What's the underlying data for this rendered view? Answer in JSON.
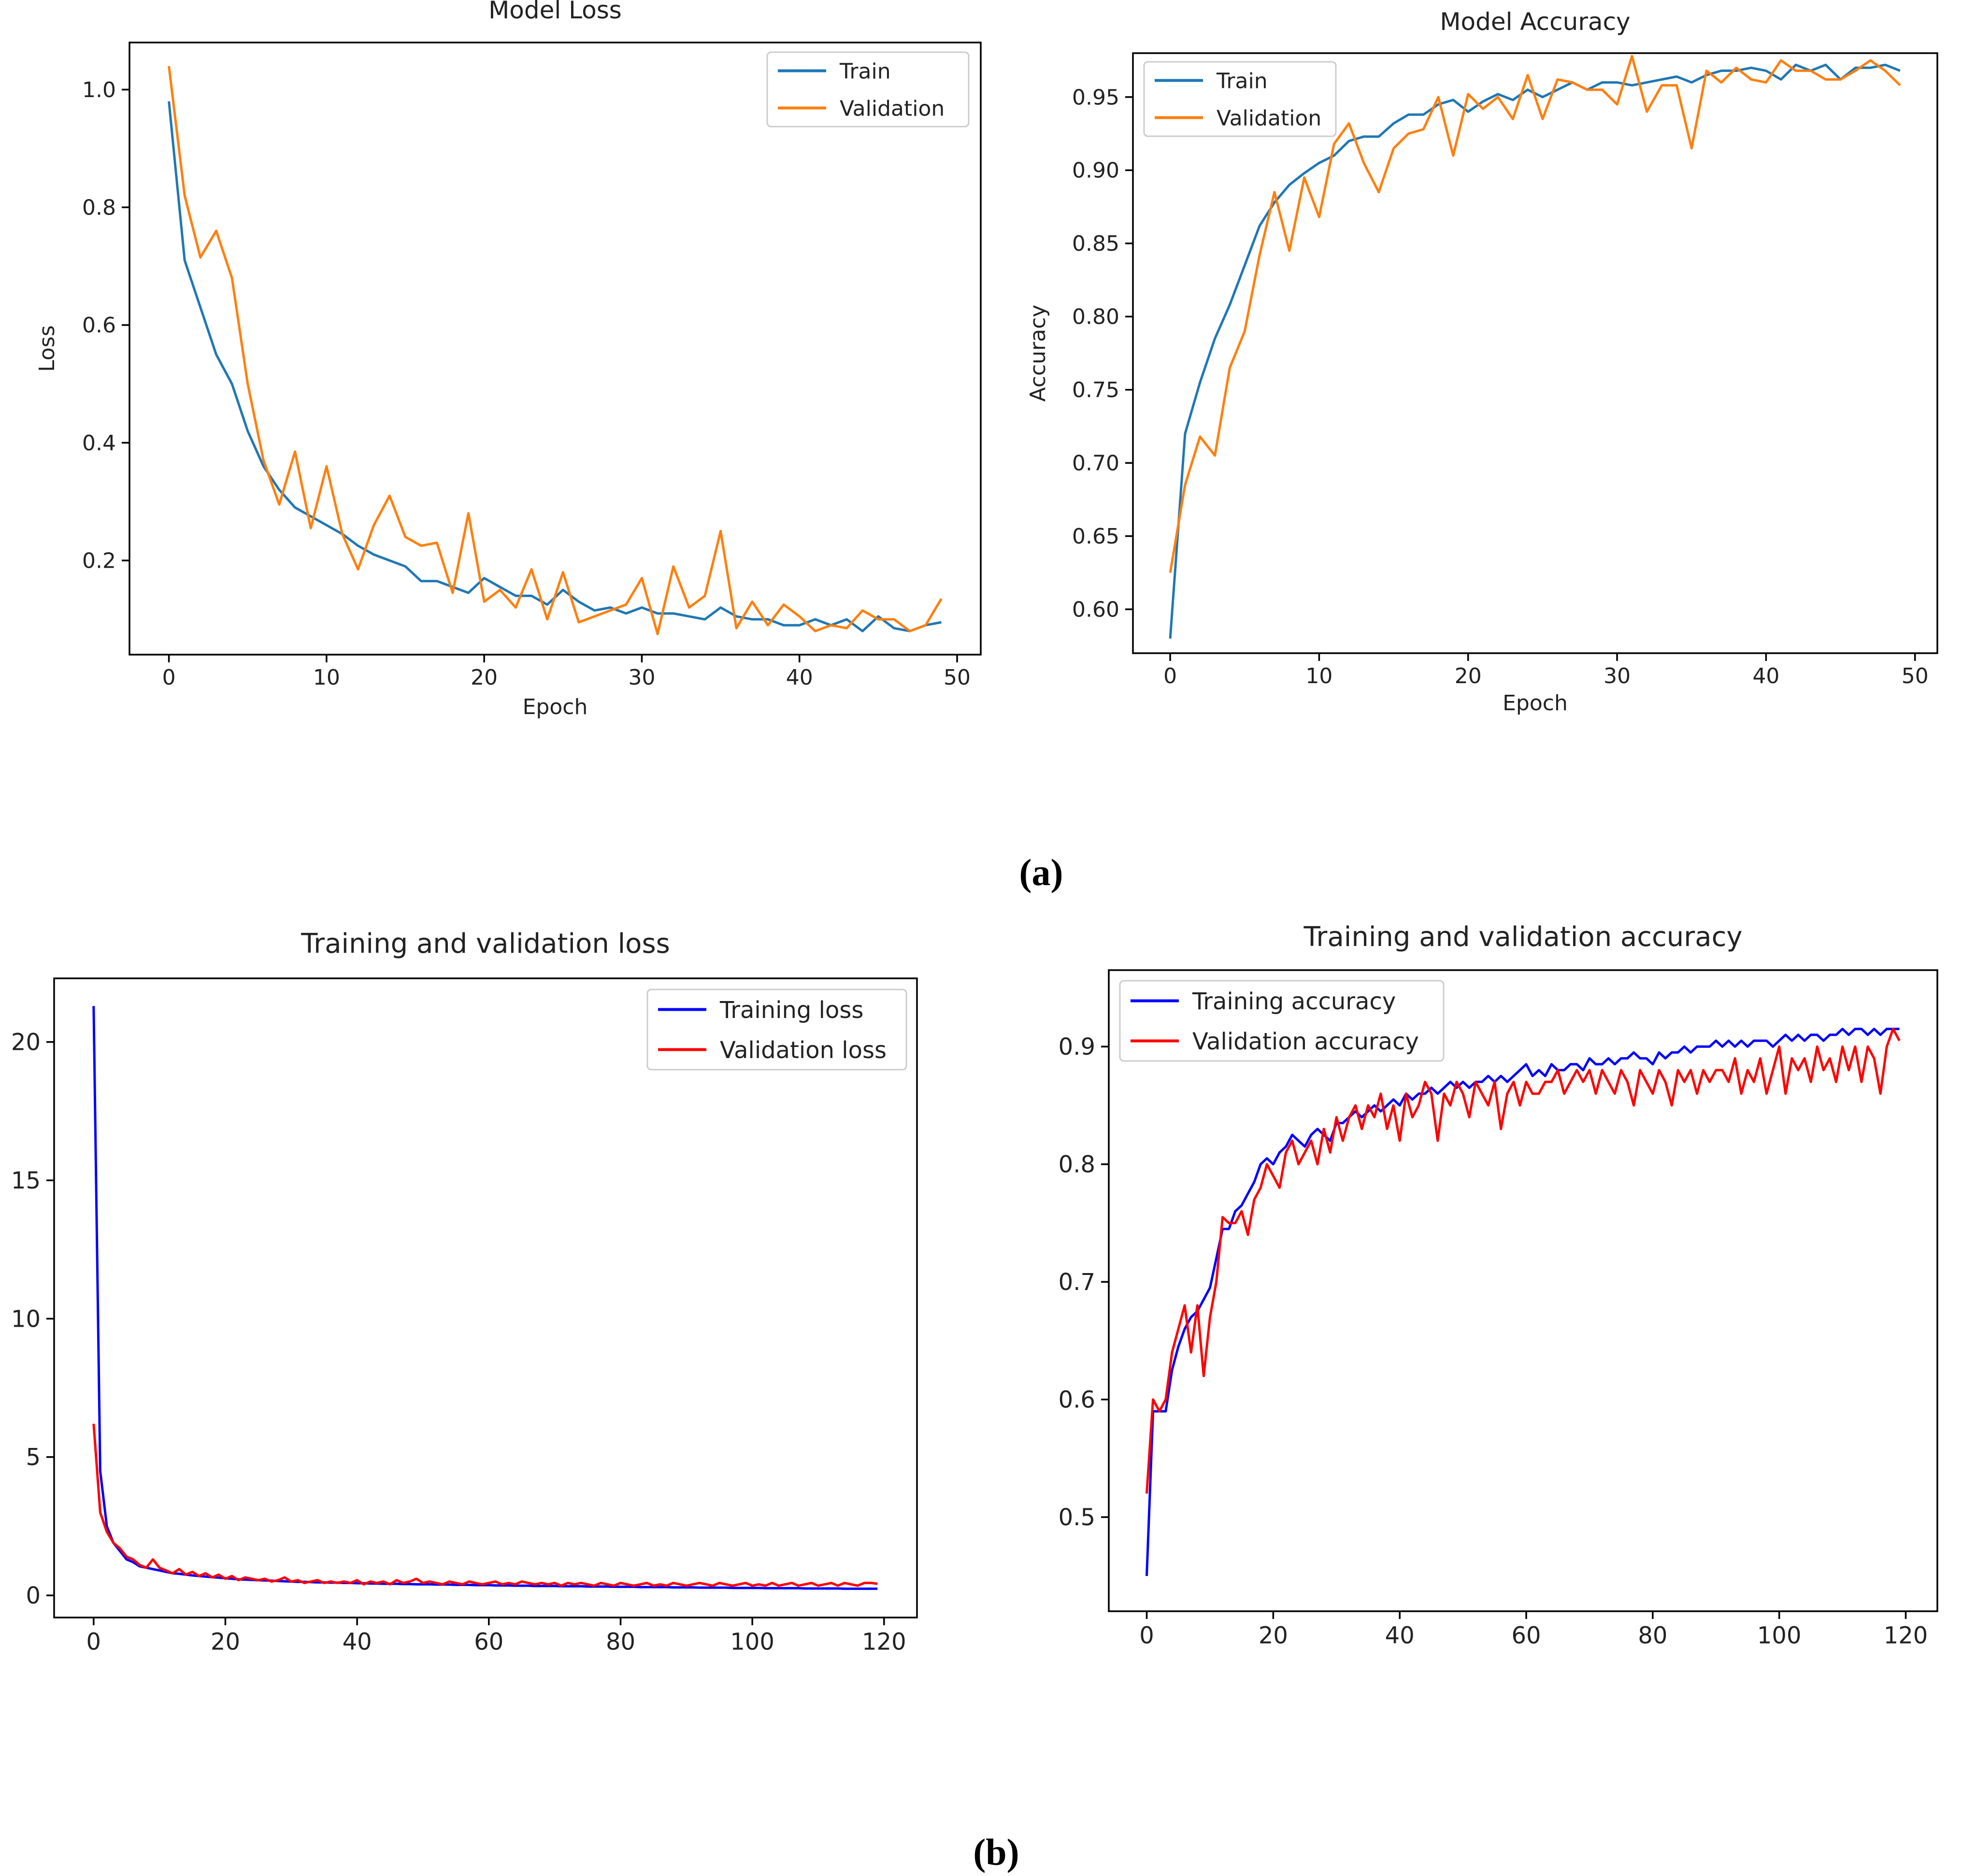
{
  "figure": {
    "caption_a": "(a)",
    "caption_b": "(b)"
  },
  "chart_data": [
    {
      "id": "a-loss",
      "type": "line",
      "title": "Model Loss",
      "xlabel": "Epoch",
      "ylabel": "Loss",
      "xlim": [
        -2.5,
        51.5
      ],
      "ylim": [
        0.04,
        1.08
      ],
      "xticks": [
        0,
        10,
        20,
        30,
        40,
        50
      ],
      "xtick_labels": [
        "0",
        "10",
        "20",
        "30",
        "40",
        "50"
      ],
      "yticks": [
        0.2,
        0.4,
        0.6,
        0.8,
        1.0
      ],
      "ytick_labels": [
        "0.2",
        "0.4",
        "0.6",
        "0.8",
        "1.0"
      ],
      "legend_position": "top-right",
      "series": [
        {
          "name": "Train",
          "color": "#1f77b4",
          "values": [
            0.98,
            0.71,
            0.63,
            0.55,
            0.5,
            0.42,
            0.36,
            0.32,
            0.29,
            0.275,
            0.26,
            0.245,
            0.225,
            0.21,
            0.2,
            0.19,
            0.165,
            0.165,
            0.155,
            0.145,
            0.17,
            0.155,
            0.14,
            0.14,
            0.125,
            0.15,
            0.13,
            0.115,
            0.12,
            0.11,
            0.12,
            0.11,
            0.11,
            0.105,
            0.1,
            0.12,
            0.105,
            0.1,
            0.1,
            0.09,
            0.09,
            0.1,
            0.09,
            0.1,
            0.08,
            0.105,
            0.085,
            0.08,
            0.09,
            0.095
          ]
        },
        {
          "name": "Validation",
          "color": "#ff7f0e",
          "values": [
            1.04,
            0.82,
            0.715,
            0.76,
            0.68,
            0.5,
            0.37,
            0.295,
            0.385,
            0.255,
            0.36,
            0.245,
            0.185,
            0.26,
            0.31,
            0.24,
            0.225,
            0.23,
            0.145,
            0.28,
            0.13,
            0.15,
            0.12,
            0.185,
            0.1,
            0.18,
            0.095,
            0.105,
            0.115,
            0.125,
            0.17,
            0.075,
            0.19,
            0.12,
            0.14,
            0.25,
            0.085,
            0.13,
            0.09,
            0.125,
            0.105,
            0.08,
            0.09,
            0.085,
            0.115,
            0.1,
            0.1,
            0.08,
            0.09,
            0.135
          ]
        }
      ]
    },
    {
      "id": "a-acc",
      "type": "line",
      "title": "Model Accuracy",
      "xlabel": "Epoch",
      "ylabel": "Accuracy",
      "xlim": [
        -2.5,
        51.5
      ],
      "ylim": [
        0.57,
        0.98
      ],
      "xticks": [
        0,
        10,
        20,
        30,
        40,
        50
      ],
      "xtick_labels": [
        "0",
        "10",
        "20",
        "30",
        "40",
        "50"
      ],
      "yticks": [
        0.6,
        0.65,
        0.7,
        0.75,
        0.8,
        0.85,
        0.9,
        0.95
      ],
      "ytick_labels": [
        "0.60",
        "0.65",
        "0.70",
        "0.75",
        "0.80",
        "0.85",
        "0.90",
        "0.95"
      ],
      "legend_position": "top-left",
      "series": [
        {
          "name": "Train",
          "color": "#1f77b4",
          "values": [
            0.58,
            0.72,
            0.755,
            0.785,
            0.808,
            0.835,
            0.862,
            0.878,
            0.89,
            0.898,
            0.905,
            0.91,
            0.92,
            0.923,
            0.923,
            0.932,
            0.938,
            0.938,
            0.945,
            0.948,
            0.94,
            0.947,
            0.952,
            0.948,
            0.955,
            0.95,
            0.955,
            0.96,
            0.955,
            0.96,
            0.96,
            0.958,
            0.96,
            0.962,
            0.964,
            0.96,
            0.965,
            0.968,
            0.968,
            0.97,
            0.968,
            0.962,
            0.972,
            0.968,
            0.972,
            0.962,
            0.97,
            0.97,
            0.972,
            0.968
          ]
        },
        {
          "name": "Validation",
          "color": "#ff7f0e",
          "values": [
            0.625,
            0.685,
            0.718,
            0.705,
            0.765,
            0.79,
            0.842,
            0.885,
            0.845,
            0.895,
            0.868,
            0.918,
            0.932,
            0.905,
            0.885,
            0.915,
            0.925,
            0.928,
            0.95,
            0.91,
            0.952,
            0.942,
            0.95,
            0.935,
            0.965,
            0.935,
            0.962,
            0.96,
            0.955,
            0.955,
            0.945,
            0.978,
            0.94,
            0.958,
            0.958,
            0.915,
            0.968,
            0.96,
            0.97,
            0.962,
            0.96,
            0.975,
            0.968,
            0.968,
            0.962,
            0.962,
            0.968,
            0.975,
            0.968,
            0.958
          ]
        }
      ]
    },
    {
      "id": "b-loss",
      "type": "line",
      "title": "Training and validation loss",
      "xlabel": "",
      "ylabel": "",
      "xlim": [
        -6,
        125
      ],
      "ylim": [
        -0.8,
        22.3
      ],
      "xticks": [
        0,
        20,
        40,
        60,
        80,
        100,
        120
      ],
      "xtick_labels": [
        "0",
        "20",
        "40",
        "60",
        "80",
        "100",
        "120"
      ],
      "yticks": [
        0,
        5,
        10,
        15,
        20
      ],
      "ytick_labels": [
        "0",
        "5",
        "10",
        "15",
        "20"
      ],
      "legend_position": "top-right",
      "series": [
        {
          "name": "Training loss",
          "color": "#0000ff",
          "values": [
            21.3,
            4.5,
            2.5,
            1.9,
            1.6,
            1.3,
            1.2,
            1.05,
            1.0,
            0.95,
            0.9,
            0.85,
            0.8,
            0.78,
            0.75,
            0.72,
            0.7,
            0.68,
            0.66,
            0.64,
            0.62,
            0.6,
            0.58,
            0.57,
            0.56,
            0.55,
            0.54,
            0.53,
            0.52,
            0.51,
            0.5,
            0.49,
            0.49,
            0.48,
            0.47,
            0.47,
            0.46,
            0.46,
            0.45,
            0.45,
            0.44,
            0.44,
            0.43,
            0.43,
            0.42,
            0.42,
            0.42,
            0.41,
            0.41,
            0.4,
            0.4,
            0.4,
            0.39,
            0.39,
            0.39,
            0.38,
            0.38,
            0.38,
            0.37,
            0.37,
            0.37,
            0.36,
            0.36,
            0.36,
            0.35,
            0.35,
            0.35,
            0.34,
            0.34,
            0.34,
            0.34,
            0.33,
            0.33,
            0.33,
            0.33,
            0.32,
            0.32,
            0.32,
            0.32,
            0.31,
            0.31,
            0.31,
            0.31,
            0.3,
            0.3,
            0.3,
            0.3,
            0.3,
            0.29,
            0.29,
            0.29,
            0.29,
            0.28,
            0.28,
            0.28,
            0.28,
            0.28,
            0.27,
            0.27,
            0.27,
            0.27,
            0.27,
            0.26,
            0.26,
            0.26,
            0.26,
            0.26,
            0.26,
            0.25,
            0.25,
            0.25,
            0.25,
            0.25,
            0.25,
            0.24,
            0.24,
            0.24,
            0.24,
            0.24,
            0.24
          ]
        },
        {
          "name": "Validation loss",
          "color": "#ff0000",
          "values": [
            6.2,
            3.0,
            2.3,
            1.9,
            1.7,
            1.4,
            1.3,
            1.1,
            1.0,
            1.3,
            1.0,
            0.9,
            0.8,
            0.95,
            0.75,
            0.85,
            0.7,
            0.8,
            0.65,
            0.75,
            0.6,
            0.7,
            0.55,
            0.65,
            0.6,
            0.55,
            0.6,
            0.5,
            0.55,
            0.65,
            0.5,
            0.55,
            0.45,
            0.5,
            0.55,
            0.45,
            0.5,
            0.45,
            0.5,
            0.45,
            0.55,
            0.4,
            0.5,
            0.45,
            0.5,
            0.4,
            0.55,
            0.45,
            0.5,
            0.6,
            0.45,
            0.5,
            0.45,
            0.4,
            0.5,
            0.45,
            0.4,
            0.5,
            0.45,
            0.4,
            0.45,
            0.5,
            0.4,
            0.45,
            0.4,
            0.5,
            0.45,
            0.4,
            0.45,
            0.4,
            0.45,
            0.35,
            0.45,
            0.4,
            0.45,
            0.4,
            0.35,
            0.45,
            0.4,
            0.35,
            0.45,
            0.4,
            0.35,
            0.4,
            0.45,
            0.35,
            0.4,
            0.35,
            0.45,
            0.4,
            0.35,
            0.4,
            0.45,
            0.4,
            0.35,
            0.45,
            0.4,
            0.35,
            0.4,
            0.45,
            0.35,
            0.4,
            0.35,
            0.45,
            0.35,
            0.4,
            0.45,
            0.35,
            0.4,
            0.45,
            0.35,
            0.4,
            0.45,
            0.35,
            0.45,
            0.4,
            0.35,
            0.45,
            0.45,
            0.42
          ]
        }
      ]
    },
    {
      "id": "b-acc",
      "type": "line",
      "title": "Training and validation accuracy",
      "xlabel": "",
      "ylabel": "",
      "xlim": [
        -6,
        125
      ],
      "ylim": [
        0.42,
        0.965
      ],
      "xticks": [
        0,
        20,
        40,
        60,
        80,
        100,
        120
      ],
      "xtick_labels": [
        "0",
        "20",
        "40",
        "60",
        "80",
        "100",
        "120"
      ],
      "yticks": [
        0.5,
        0.6,
        0.7,
        0.8,
        0.9
      ],
      "ytick_labels": [
        "0.5",
        "0.6",
        "0.7",
        "0.8",
        "0.9"
      ],
      "legend_position": "top-left",
      "series": [
        {
          "name": "Training accuracy",
          "color": "#0000ff",
          "values": [
            0.45,
            0.59,
            0.59,
            0.59,
            0.625,
            0.645,
            0.66,
            0.67,
            0.675,
            0.685,
            0.695,
            0.72,
            0.745,
            0.745,
            0.76,
            0.765,
            0.775,
            0.785,
            0.8,
            0.805,
            0.8,
            0.81,
            0.815,
            0.825,
            0.82,
            0.815,
            0.825,
            0.83,
            0.825,
            0.82,
            0.835,
            0.835,
            0.84,
            0.845,
            0.84,
            0.845,
            0.85,
            0.845,
            0.85,
            0.855,
            0.85,
            0.86,
            0.855,
            0.86,
            0.86,
            0.865,
            0.86,
            0.865,
            0.87,
            0.865,
            0.87,
            0.865,
            0.87,
            0.87,
            0.875,
            0.87,
            0.875,
            0.87,
            0.875,
            0.88,
            0.885,
            0.875,
            0.88,
            0.875,
            0.885,
            0.88,
            0.88,
            0.885,
            0.885,
            0.88,
            0.89,
            0.885,
            0.885,
            0.89,
            0.885,
            0.89,
            0.89,
            0.895,
            0.89,
            0.89,
            0.885,
            0.895,
            0.89,
            0.895,
            0.895,
            0.9,
            0.895,
            0.9,
            0.9,
            0.9,
            0.905,
            0.9,
            0.905,
            0.9,
            0.905,
            0.9,
            0.905,
            0.905,
            0.905,
            0.9,
            0.905,
            0.91,
            0.905,
            0.91,
            0.905,
            0.91,
            0.91,
            0.905,
            0.91,
            0.91,
            0.915,
            0.91,
            0.915,
            0.915,
            0.91,
            0.915,
            0.91,
            0.915,
            0.915,
            0.915
          ]
        },
        {
          "name": "Validation accuracy",
          "color": "#ff0000",
          "values": [
            0.52,
            0.6,
            0.59,
            0.6,
            0.64,
            0.66,
            0.68,
            0.64,
            0.68,
            0.62,
            0.67,
            0.7,
            0.755,
            0.75,
            0.75,
            0.76,
            0.74,
            0.77,
            0.78,
            0.8,
            0.79,
            0.78,
            0.81,
            0.82,
            0.8,
            0.81,
            0.82,
            0.8,
            0.83,
            0.81,
            0.84,
            0.82,
            0.84,
            0.85,
            0.83,
            0.85,
            0.84,
            0.86,
            0.83,
            0.85,
            0.82,
            0.86,
            0.84,
            0.85,
            0.87,
            0.86,
            0.82,
            0.86,
            0.85,
            0.87,
            0.86,
            0.84,
            0.87,
            0.86,
            0.85,
            0.87,
            0.83,
            0.86,
            0.87,
            0.85,
            0.87,
            0.86,
            0.86,
            0.87,
            0.87,
            0.88,
            0.86,
            0.87,
            0.88,
            0.87,
            0.88,
            0.86,
            0.88,
            0.87,
            0.86,
            0.88,
            0.87,
            0.85,
            0.88,
            0.87,
            0.86,
            0.88,
            0.87,
            0.85,
            0.88,
            0.87,
            0.88,
            0.86,
            0.88,
            0.87,
            0.88,
            0.88,
            0.87,
            0.89,
            0.86,
            0.88,
            0.87,
            0.89,
            0.86,
            0.88,
            0.9,
            0.86,
            0.89,
            0.88,
            0.89,
            0.87,
            0.9,
            0.88,
            0.89,
            0.87,
            0.9,
            0.88,
            0.9,
            0.87,
            0.9,
            0.89,
            0.86,
            0.9,
            0.915,
            0.905
          ]
        }
      ]
    }
  ]
}
